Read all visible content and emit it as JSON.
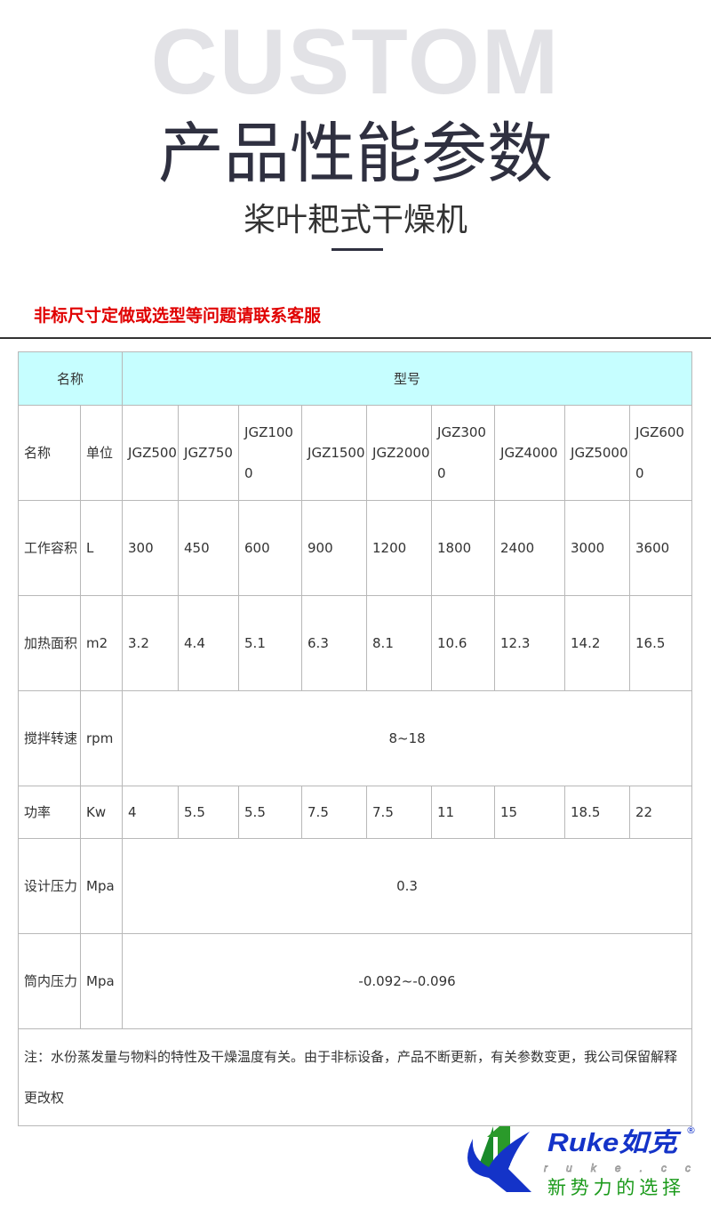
{
  "header": {
    "bg_word": "CUSTOM",
    "title": "产品性能参数",
    "subtitle": "桨叶耙式干燥机"
  },
  "notice": "非标尺寸定做或选型等问题请联系客服",
  "table": {
    "head": {
      "name": "名称",
      "model": "型号"
    },
    "col_name": "名称",
    "col_unit": "单位",
    "models": [
      "JGZ500",
      "JGZ750",
      "JGZ1000",
      "JGZ1500",
      "JGZ2000",
      "JGZ3000",
      "JGZ4000",
      "JGZ5000",
      "JGZ6000"
    ],
    "rows": [
      {
        "name": "工作容积",
        "unit": "L",
        "values": [
          "300",
          "450",
          "600",
          "900",
          "1200",
          "1800",
          "2400",
          "3000",
          "3600"
        ]
      },
      {
        "name": "加热面积",
        "unit": "m2",
        "values": [
          "3.2",
          "4.4",
          "5.1",
          "6.3",
          "8.1",
          "10.6",
          "12.3",
          "14.2",
          "16.5"
        ]
      },
      {
        "name": "搅拌转速",
        "unit": "rpm",
        "span": "8~18"
      },
      {
        "name": "功率",
        "unit": "Kw",
        "values": [
          "4",
          "5.5",
          "5.5",
          "7.5",
          "7.5",
          "11",
          "15",
          "18.5",
          "22"
        ]
      },
      {
        "name": "设计压力",
        "unit": "Mpa",
        "span": "0.3"
      },
      {
        "name": "筒内压力",
        "unit": "Mpa",
        "span": "-0.092~-0.096"
      }
    ],
    "footnote": "注：水份蒸发量与物料的特性及干燥温度有关。由于非标设备，产品不断更新，有关参数变更，我公司保留解释更改权"
  },
  "logo": {
    "brand": "Ruke如克",
    "domain": "ruke.cc",
    "slogan": "新势力的选择",
    "colors": {
      "blue": "#1433c8",
      "green": "#1a9a1a"
    }
  }
}
